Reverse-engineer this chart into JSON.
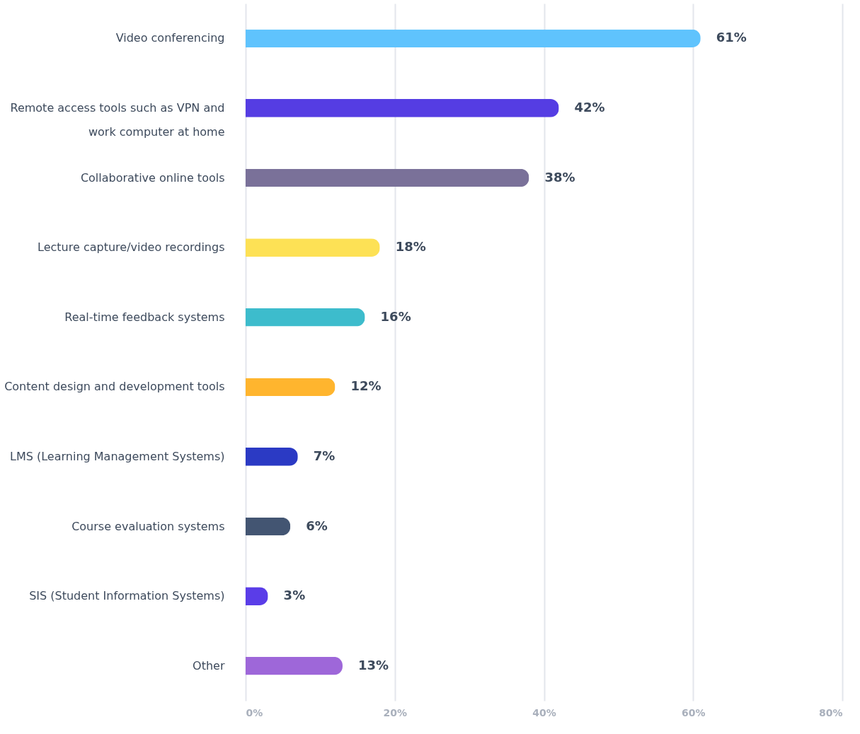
{
  "chart_data": {
    "type": "bar",
    "orientation": "horizontal",
    "categories": [
      "Video conferencing",
      "Remote access tools such as VPN and\nwork computer at home",
      "Collaborative online tools",
      "Lecture capture/video recordings",
      "Real-time feedback systems",
      "Content design and development tools",
      "LMS (Learning Management Systems)",
      "Course evaluation systems",
      "SIS (Student Information Systems)",
      "Other"
    ],
    "values": [
      61,
      42,
      38,
      18,
      16,
      12,
      7,
      6,
      3,
      13
    ],
    "colors": [
      "#5fc3fd",
      "#553de3",
      "#7a7199",
      "#fde155",
      "#3dbccc",
      "#ffb52e",
      "#2b3ac4",
      "#435572",
      "#5a3de8",
      "#9e67d9"
    ],
    "value_labels": [
      "61%",
      "42%",
      "38%",
      "18%",
      "16%",
      "12%",
      "7%",
      "6%",
      "3%",
      "13%"
    ],
    "xlim": [
      0,
      80
    ],
    "xticks": [
      {
        "value": 0,
        "label": "0%"
      },
      {
        "value": 20,
        "label": "20%"
      },
      {
        "value": 40,
        "label": "40%"
      },
      {
        "value": 60,
        "label": "60%"
      },
      {
        "value": 80,
        "label": "80%"
      }
    ],
    "grid": "x"
  }
}
